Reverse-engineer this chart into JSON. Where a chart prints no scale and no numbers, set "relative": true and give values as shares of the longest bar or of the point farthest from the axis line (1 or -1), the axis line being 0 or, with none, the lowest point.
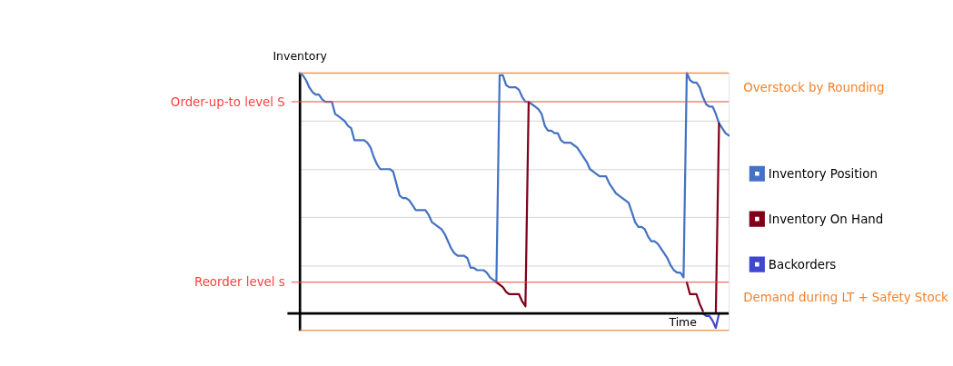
{
  "chart_data": {
    "type": "line",
    "relative": true,
    "ylabel": "Inventory",
    "xlabel": "Time",
    "categories": [
      null,
      null,
      null,
      null,
      null,
      null,
      null,
      null,
      null,
      null,
      null,
      null,
      null,
      null,
      null,
      null,
      null,
      null,
      null,
      null,
      null,
      null,
      null,
      null,
      null,
      null,
      null,
      null,
      null,
      null,
      null,
      null,
      null,
      null,
      null,
      null,
      null,
      null,
      null,
      null,
      null,
      null,
      null,
      null,
      null,
      null,
      null,
      null,
      null,
      null,
      null,
      null,
      null,
      null,
      null,
      null,
      null,
      null,
      null,
      null,
      null,
      null,
      null,
      null,
      null,
      null,
      null,
      null,
      null,
      null,
      null,
      null,
      null,
      null,
      null,
      null,
      null,
      null,
      null,
      null,
      null,
      null,
      null,
      null,
      null,
      null,
      null,
      null,
      null,
      null,
      null,
      null,
      null,
      null,
      null,
      null,
      null,
      null,
      null,
      null,
      null,
      null,
      null,
      null,
      null,
      null,
      null,
      null,
      null,
      null,
      null,
      null,
      null,
      null,
      null,
      null,
      null,
      null,
      null,
      null,
      null,
      null,
      null,
      null,
      null,
      null,
      null,
      null,
      null,
      null,
      null,
      null,
      null,
      null
    ],
    "series": [
      {
        "name": "Inventory Position",
        "color": "#4472c4",
        "values": [
          1.0,
          0.99,
          0.97,
          0.94,
          0.92,
          0.91,
          0.91,
          0.89,
          0.88,
          0.88,
          0.88,
          0.83,
          0.82,
          0.81,
          0.8,
          0.78,
          0.77,
          0.72,
          0.72,
          0.72,
          0.72,
          0.71,
          0.69,
          0.65,
          0.62,
          0.6,
          0.6,
          0.6,
          0.6,
          0.59,
          0.54,
          0.49,
          0.48,
          0.48,
          0.47,
          0.45,
          0.43,
          0.43,
          0.43,
          0.43,
          0.41,
          0.38,
          0.37,
          0.36,
          0.35,
          0.33,
          0.3,
          0.27,
          0.25,
          0.24,
          0.24,
          0.24,
          0.23,
          0.19,
          0.19,
          0.18,
          0.18,
          0.18,
          0.17,
          0.15,
          0.14,
          0.13,
          0.99,
          0.99,
          0.95,
          0.94,
          0.94,
          0.94,
          0.93,
          0.9,
          0.88,
          0.88,
          0.87,
          0.86,
          0.85,
          0.83,
          0.78,
          0.76,
          0.76,
          0.75,
          0.75,
          0.72,
          0.71,
          0.71,
          0.71,
          0.7,
          0.69,
          0.67,
          0.65,
          0.63,
          0.6,
          0.59,
          0.58,
          0.57,
          0.57,
          0.57,
          0.54,
          0.52,
          0.5,
          0.49,
          0.48,
          0.47,
          0.46,
          0.42,
          0.38,
          0.36,
          0.36,
          0.35,
          0.32,
          0.3,
          0.3,
          0.29,
          0.27,
          0.25,
          0.23,
          0.2,
          0.18,
          0.17,
          0.17,
          0.15,
          1.0,
          0.97,
          0.96,
          0.96,
          0.94,
          0.9,
          0.87,
          0.86,
          0.86,
          0.83,
          0.79,
          0.77,
          0.75,
          0.74
        ]
      },
      {
        "name": "Inventory On Hand",
        "color": "#7f0018",
        "values": [
          null,
          null,
          null,
          null,
          null,
          null,
          null,
          null,
          null,
          null,
          null,
          null,
          null,
          null,
          null,
          null,
          null,
          null,
          null,
          null,
          null,
          null,
          null,
          null,
          null,
          null,
          null,
          null,
          null,
          null,
          null,
          null,
          null,
          null,
          null,
          null,
          null,
          null,
          null,
          null,
          null,
          null,
          null,
          null,
          null,
          null,
          null,
          null,
          null,
          null,
          null,
          null,
          null,
          null,
          null,
          null,
          null,
          null,
          null,
          null,
          null,
          0.13,
          0.12,
          0.11,
          0.09,
          0.08,
          0.08,
          0.08,
          0.08,
          0.05,
          0.03,
          0.88,
          null,
          null,
          null,
          null,
          null,
          null,
          null,
          null,
          null,
          null,
          null,
          null,
          null,
          null,
          null,
          null,
          null,
          null,
          null,
          null,
          null,
          null,
          null,
          null,
          null,
          null,
          null,
          null,
          null,
          null,
          null,
          null,
          null,
          null,
          null,
          null,
          null,
          null,
          null,
          null,
          null,
          null,
          null,
          null,
          null,
          null,
          null,
          null,
          0.13,
          0.08,
          0.08,
          0.08,
          0.04,
          0.01,
          null,
          null,
          null,
          0.0,
          0.79,
          null,
          null,
          null
        ]
      },
      {
        "name": "Backorders",
        "color": "#3f48cc",
        "values": [
          null,
          null,
          null,
          null,
          null,
          null,
          null,
          null,
          null,
          null,
          null,
          null,
          null,
          null,
          null,
          null,
          null,
          null,
          null,
          null,
          null,
          null,
          null,
          null,
          null,
          null,
          null,
          null,
          null,
          null,
          null,
          null,
          null,
          null,
          null,
          null,
          null,
          null,
          null,
          null,
          null,
          null,
          null,
          null,
          null,
          null,
          null,
          null,
          null,
          null,
          null,
          null,
          null,
          null,
          null,
          null,
          null,
          null,
          null,
          null,
          null,
          null,
          null,
          null,
          null,
          null,
          null,
          null,
          null,
          null,
          null,
          null,
          null,
          null,
          null,
          null,
          null,
          null,
          null,
          null,
          null,
          null,
          null,
          null,
          null,
          null,
          null,
          null,
          null,
          null,
          null,
          null,
          null,
          null,
          null,
          null,
          null,
          null,
          null,
          null,
          null,
          null,
          null,
          null,
          null,
          null,
          null,
          null,
          null,
          null,
          null,
          null,
          null,
          null,
          null,
          null,
          null,
          null,
          null,
          null,
          null,
          null,
          null,
          null,
          null,
          0.0,
          -0.01,
          -0.01,
          -0.03,
          -0.06,
          0.0,
          null,
          null,
          null
        ]
      }
    ],
    "ref_lines": [
      {
        "axis": "y",
        "value": 0.88,
        "label": "Order-up-to level S",
        "color": "#ff4040"
      },
      {
        "axis": "y",
        "value": 0.13,
        "label": "Reorder level s",
        "color": "#ff4040"
      },
      {
        "axis": "y",
        "value": 1.0,
        "color": "#f4822a"
      },
      {
        "axis": "y",
        "value": -0.07,
        "color": "#f4822a"
      }
    ],
    "annotations": [
      "Overstock by Rounding",
      "Demand during LT + Safety Stock"
    ],
    "grid": "y",
    "legend": "right",
    "line_style": "solid"
  }
}
